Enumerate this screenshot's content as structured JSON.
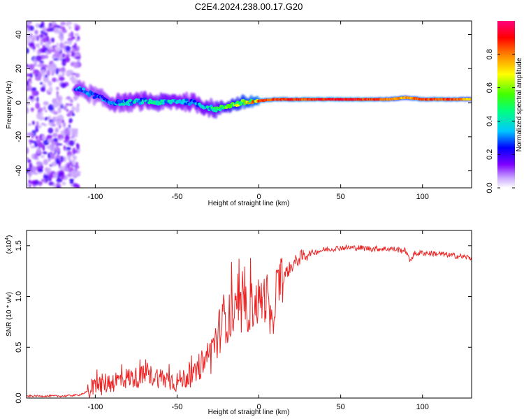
{
  "figure": {
    "title": "C2E4.2024.238.00.17.G20"
  },
  "chart_data": [
    {
      "type": "heatmap",
      "xlabel": "Height of straight line (km)",
      "ylabel": "Frequency (Hz)",
      "xlim": [
        -142,
        130
      ],
      "ylim": [
        -50,
        48
      ],
      "xticks": [
        -100,
        -50,
        0,
        50,
        100
      ],
      "yticks": [
        -40,
        -20,
        0,
        20,
        40
      ],
      "xtick_labels": [
        "-100",
        "-50",
        "0",
        "50",
        "100"
      ],
      "ytick_labels": [
        "-40",
        "-20",
        "0",
        "20",
        "40"
      ],
      "colorbar": {
        "label": "Normalized spectral amplitude",
        "range": [
          0,
          1
        ],
        "ticks": [
          0.0,
          0.2,
          0.4,
          0.6,
          0.8
        ],
        "tick_labels": [
          "0.0",
          "0.2",
          "0.4",
          "0.6",
          "0.8"
        ],
        "colors": [
          "#ffffff",
          "#7f00ff",
          "#0000ff",
          "#00c8ff",
          "#00ff80",
          "#40ff00",
          "#ffff00",
          "#ff8000",
          "#ff0000",
          "#ff0080"
        ]
      },
      "ridge": {
        "description_points_x": [
          -110,
          -100,
          -90,
          -80,
          -70,
          -60,
          -50,
          -40,
          -30,
          -25,
          -20,
          -10,
          0,
          10,
          20,
          40,
          60,
          80,
          90,
          100,
          120,
          130
        ],
        "frequency": [
          8,
          4,
          0,
          0,
          1,
          0,
          1,
          0,
          -3,
          -4,
          -2,
          0,
          1,
          2,
          2,
          2,
          2,
          2,
          3,
          2,
          2,
          2
        ],
        "amplitude": [
          0.35,
          0.3,
          0.35,
          0.4,
          0.4,
          0.45,
          0.4,
          0.4,
          0.45,
          0.5,
          0.55,
          0.75,
          0.85,
          0.85,
          0.85,
          0.9,
          0.9,
          0.8,
          0.75,
          0.85,
          0.85,
          0.7
        ]
      },
      "noise_region_x": [
        -142,
        -110
      ]
    },
    {
      "type": "line",
      "xlabel": "Height of straight line (km)",
      "ylabel": "SNR (10 * v/v)",
      "y_multiplier_label": "(x10",
      "y_multiplier_exp": "4",
      "xlim": [
        -142,
        130
      ],
      "ylim": [
        0,
        1.65
      ],
      "xticks": [
        -100,
        -50,
        0,
        50,
        100
      ],
      "yticks": [
        0.0,
        0.5,
        1.0,
        1.5
      ],
      "xtick_labels": [
        "-100",
        "-50",
        "0",
        "50",
        "100"
      ],
      "ytick_labels": [
        "0.0",
        "0.5",
        "1.0",
        "1.5"
      ],
      "series": [
        {
          "color": "#ee2222",
          "x": [
            -142,
            -130,
            -120,
            -110,
            -105,
            -100,
            -95,
            -90,
            -85,
            -80,
            -75,
            -70,
            -65,
            -60,
            -55,
            -50,
            -45,
            -40,
            -35,
            -30,
            -25,
            -22,
            -20,
            -15,
            -10,
            -5,
            0,
            5,
            8,
            10,
            15,
            20,
            25,
            30,
            40,
            50,
            60,
            70,
            80,
            90,
            92,
            95,
            100,
            110,
            120,
            130
          ],
          "values": [
            0.02,
            0.02,
            0.02,
            0.03,
            0.06,
            0.1,
            0.14,
            0.16,
            0.18,
            0.2,
            0.2,
            0.22,
            0.22,
            0.2,
            0.18,
            0.16,
            0.2,
            0.22,
            0.3,
            0.45,
            0.6,
            0.8,
            0.78,
            0.8,
            0.85,
            0.9,
            0.95,
            1.0,
            0.6,
            1.05,
            1.2,
            1.3,
            1.38,
            1.42,
            1.46,
            1.48,
            1.48,
            1.47,
            1.47,
            1.45,
            1.35,
            1.42,
            1.43,
            1.42,
            1.4,
            1.38
          ]
        }
      ]
    }
  ]
}
